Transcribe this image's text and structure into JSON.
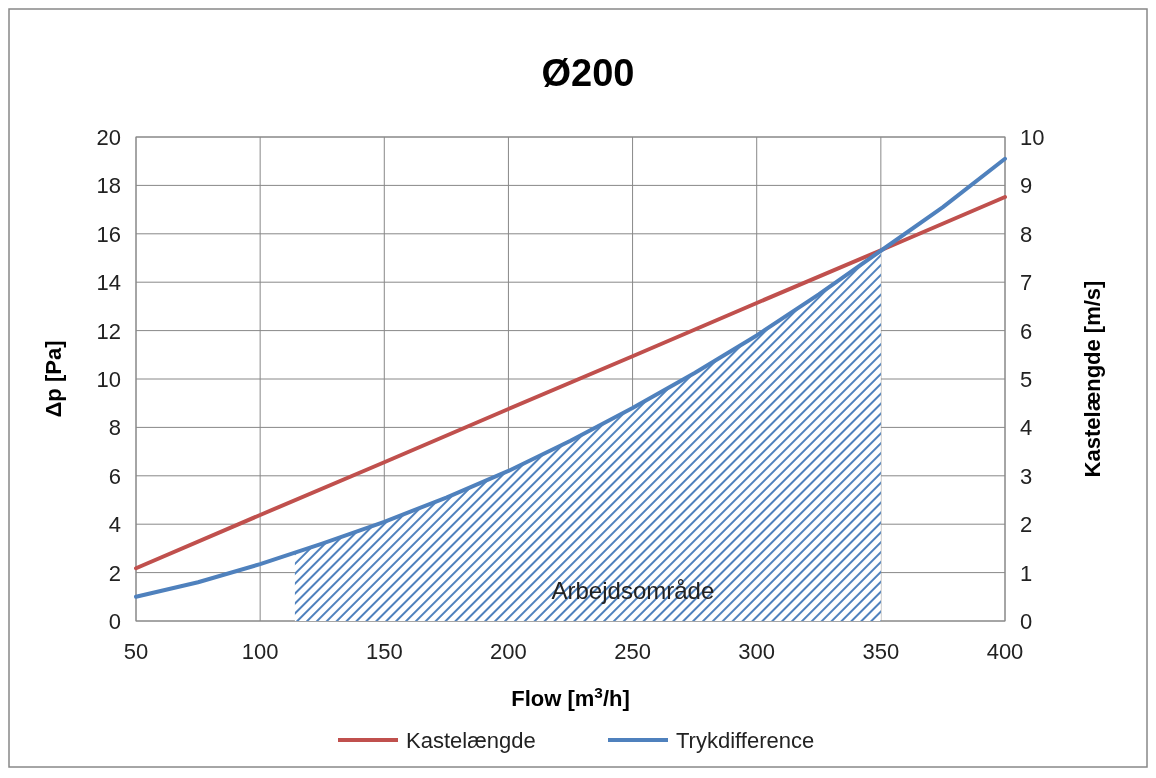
{
  "chart_data": {
    "type": "line",
    "title": "Ø200",
    "xlabel": "Flow [m$^{3}$/h]",
    "ylabel": "Δp [Pa]",
    "y2label": "Kastelængde [m/s]",
    "xlim": [
      50,
      400
    ],
    "xticks": [
      50,
      100,
      150,
      200,
      250,
      300,
      350,
      400
    ],
    "ylim": [
      0,
      20
    ],
    "yticks": [
      0,
      2,
      4,
      6,
      8,
      10,
      12,
      14,
      16,
      18,
      20
    ],
    "y2lim": [
      0,
      10
    ],
    "y2ticks": [
      0,
      1,
      2,
      3,
      4,
      5,
      6,
      7,
      8,
      9,
      10
    ],
    "grid": true,
    "legend": "bottom",
    "series": [
      {
        "type": "area",
        "name": "Arbejdsområde",
        "color": "#4f81bd",
        "x": [
          114,
          125,
          150,
          175,
          200,
          225,
          250,
          275,
          300,
          325,
          350
        ],
        "values": [
          2.8,
          3.2,
          4.1,
          5.1,
          6.2,
          7.45,
          8.8,
          10.25,
          11.8,
          13.5,
          15.3
        ]
      },
      {
        "name": "Kastelængde",
        "color": "#c0504d",
        "axis": "y2",
        "x": [
          50,
          100,
          150,
          200,
          250,
          300,
          350,
          400
        ],
        "values": [
          1.09,
          2.19,
          3.28,
          4.38,
          5.47,
          6.57,
          7.66,
          8.76
        ]
      },
      {
        "name": "Trykdifference",
        "color": "#4f81bd",
        "x": [
          50,
          75,
          100,
          125,
          150,
          175,
          200,
          225,
          250,
          275,
          300,
          325,
          350,
          375,
          400
        ],
        "values": [
          1.0,
          1.6,
          2.35,
          3.2,
          4.1,
          5.1,
          6.2,
          7.45,
          8.8,
          10.25,
          11.8,
          13.5,
          15.3,
          17.1,
          19.1
        ]
      }
    ]
  }
}
